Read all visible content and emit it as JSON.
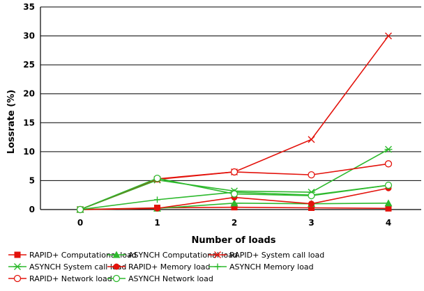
{
  "chart_data": {
    "type": "line",
    "title": "",
    "xlabel": "Number of loads",
    "ylabel": "Lossrate (%)",
    "x": [
      0,
      1,
      2,
      3,
      4
    ],
    "xticks": [
      "0",
      "1",
      "2",
      "3",
      "4"
    ],
    "ylim": [
      0,
      35
    ],
    "yticks": [
      0,
      5,
      10,
      15,
      20,
      25,
      30,
      35
    ],
    "grid": "horizontal",
    "legend_position": "bottom",
    "series": [
      {
        "name": "RAPID+ Computational load",
        "color": "#e3120b",
        "marker": "square",
        "values": [
          0,
          0.3,
          0.4,
          0.3,
          0.2
        ]
      },
      {
        "name": "ASYNCH Computational load",
        "color": "#2db92d",
        "marker": "triangle",
        "values": [
          0,
          0.2,
          1.1,
          1.0,
          1.1
        ]
      },
      {
        "name": "RAPID+ System call load",
        "color": "#e3120b",
        "marker": "x",
        "values": [
          0,
          5.2,
          6.5,
          12.1,
          30.0
        ]
      },
      {
        "name": "ASYNCH System call load",
        "color": "#2db92d",
        "marker": "star",
        "values": [
          0,
          5.1,
          3.2,
          3.0,
          10.4
        ]
      },
      {
        "name": "RAPID+ Memory load",
        "color": "#e3120b",
        "marker": "circle-filled",
        "values": [
          0,
          0.2,
          2.1,
          1.0,
          3.7
        ]
      },
      {
        "name": "ASYNCH Memory load",
        "color": "#2db92d",
        "marker": "plus",
        "values": [
          0,
          1.7,
          3.0,
          2.5,
          4.2
        ]
      },
      {
        "name": "RAPID+ Network load",
        "color": "#e3120b",
        "marker": "circle-open",
        "values": [
          0,
          5.3,
          6.5,
          6.0,
          7.9
        ]
      },
      {
        "name": "ASYNCH Network load",
        "color": "#2db92d",
        "marker": "circle-open",
        "values": [
          0,
          5.4,
          2.7,
          2.4,
          4.2
        ]
      }
    ]
  }
}
